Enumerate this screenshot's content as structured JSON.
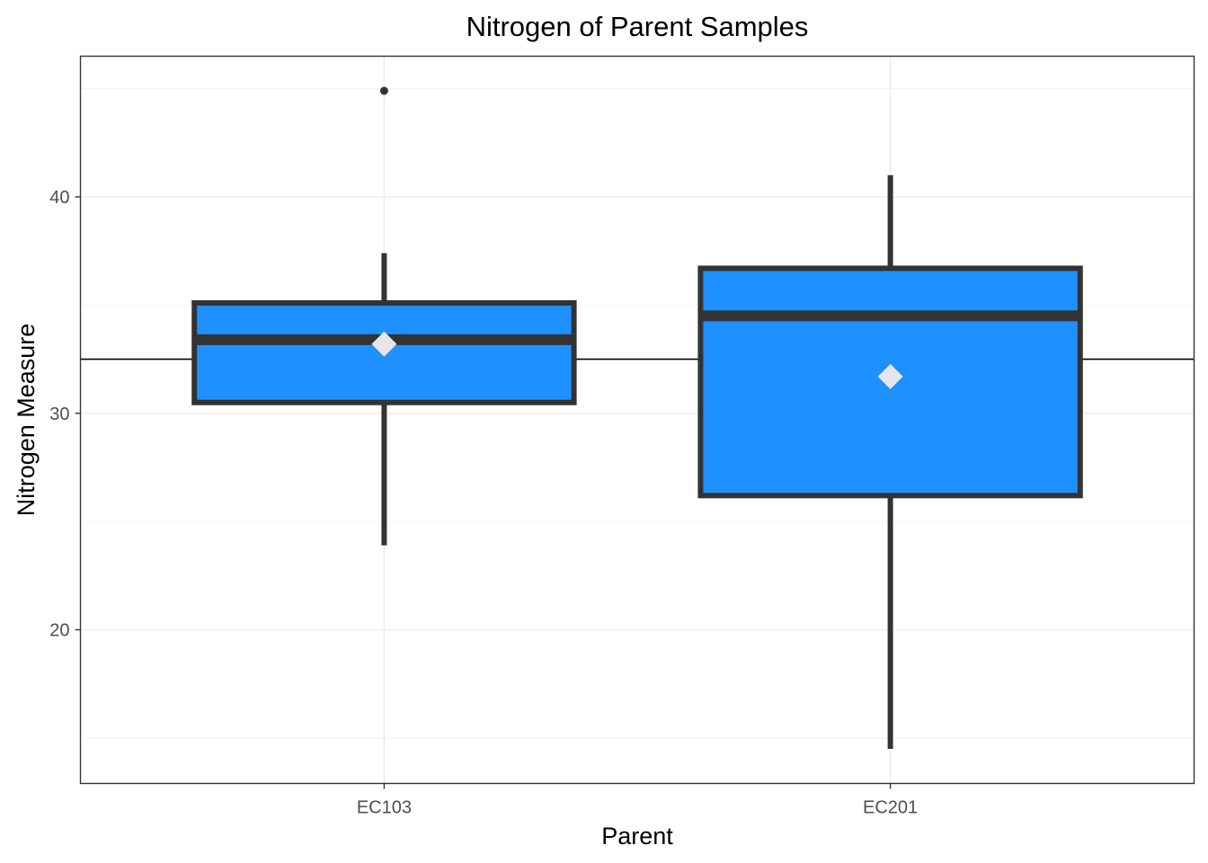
{
  "chart_data": {
    "type": "box",
    "title": "Nitrogen of Parent Samples",
    "xlabel": "Parent",
    "ylabel": "Nitrogen Measure",
    "categories": [
      "EC103",
      "EC201"
    ],
    "ylim": [
      12.9,
      46.5
    ],
    "y_ticks": [
      20,
      30,
      40
    ],
    "y_tick_labels": [
      "20",
      "30",
      "40"
    ],
    "y_minor_ticks": [
      15,
      25,
      35,
      45
    ],
    "grid": true,
    "reference_line": 32.5,
    "fill_color": "#1e90ff",
    "outline_color": "#333333",
    "mean_marker_color": "#e6e6e6",
    "boxes": [
      {
        "category": "EC103",
        "lower_whisker": 23.9,
        "q1": 30.5,
        "median": 33.4,
        "q3": 35.1,
        "upper_whisker": 37.4,
        "mean": 33.2,
        "outliers": [
          44.9
        ]
      },
      {
        "category": "EC201",
        "lower_whisker": 14.5,
        "q1": 26.2,
        "median": 34.5,
        "q3": 36.7,
        "upper_whisker": 41.0,
        "mean": 31.7,
        "outliers": []
      }
    ]
  }
}
